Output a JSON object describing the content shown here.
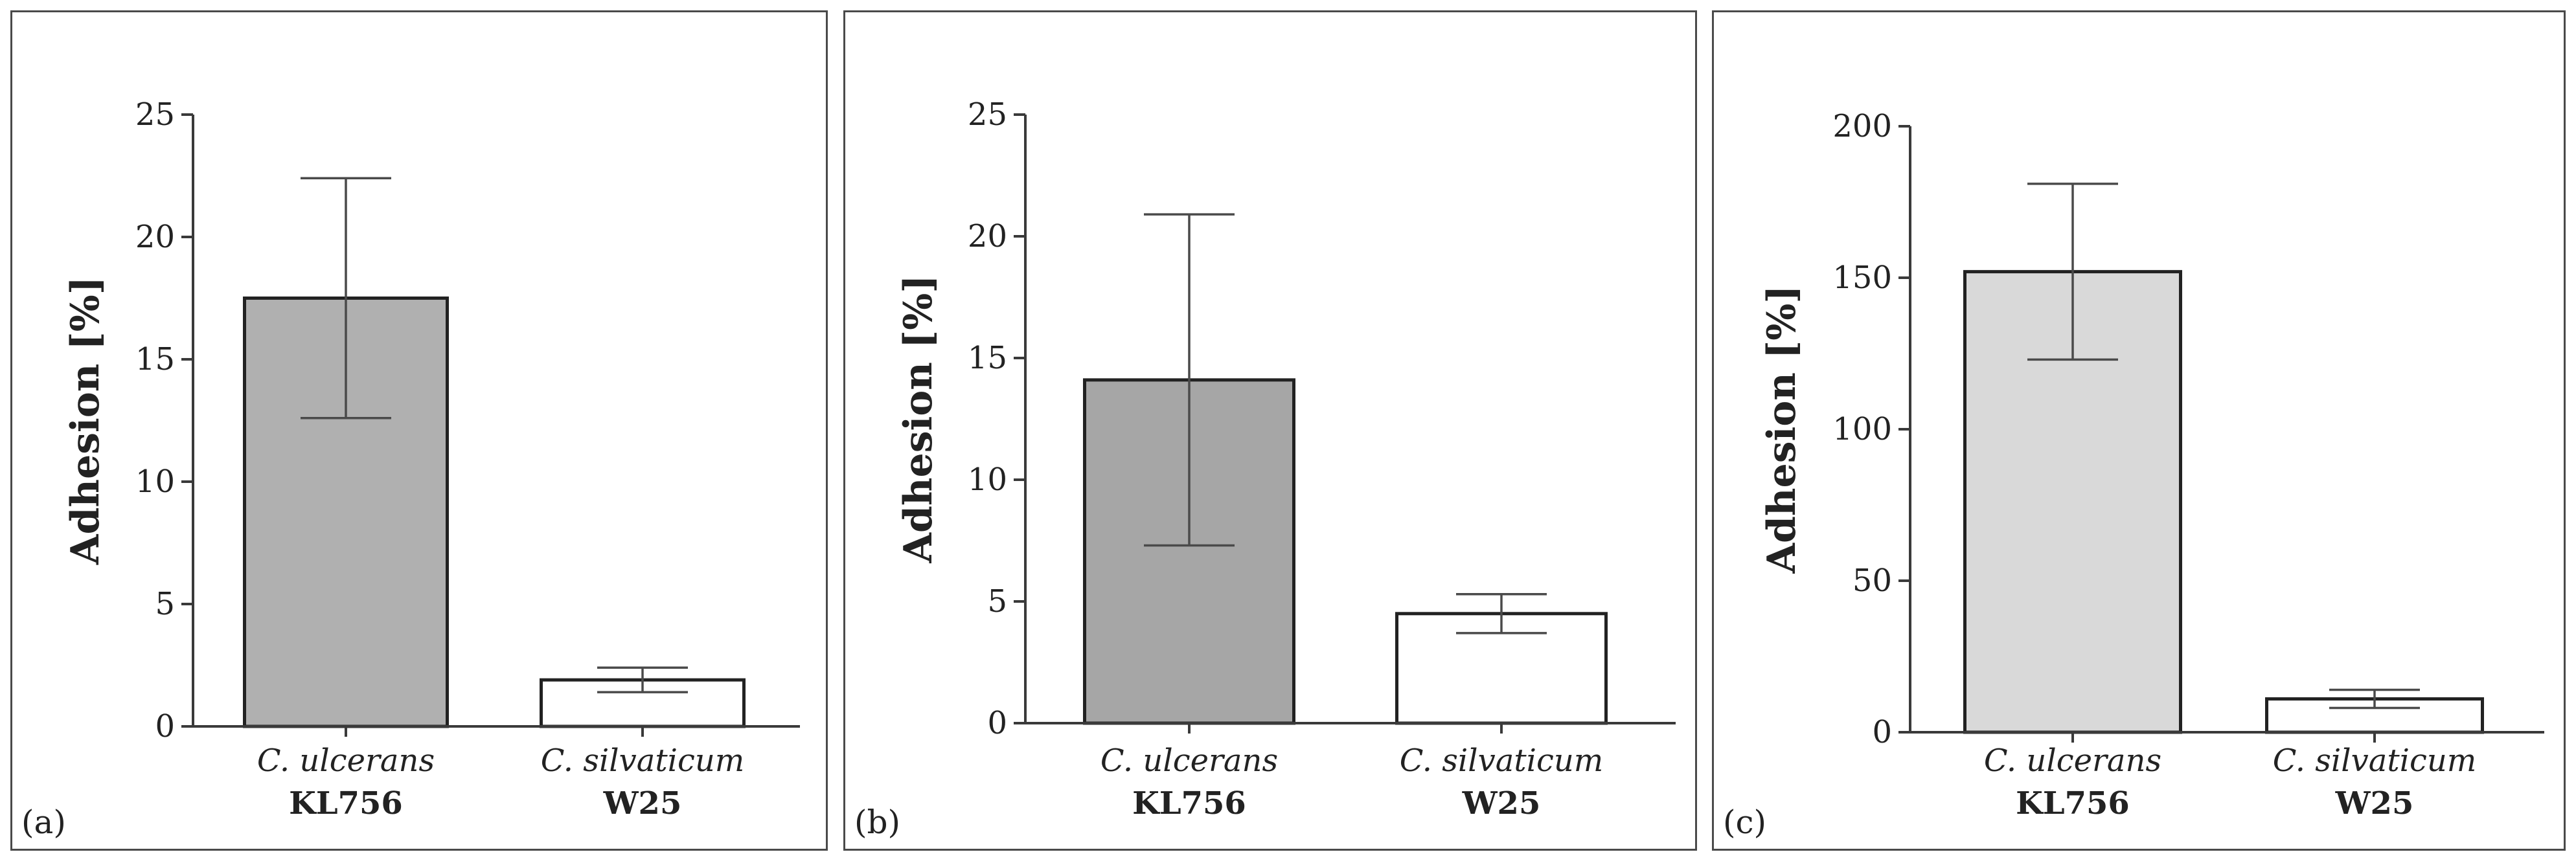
{
  "chart_data": [
    {
      "type": "bar",
      "panel_label": "(a)",
      "ylabel": "Adhesion [%]",
      "ylim": [
        0,
        25
      ],
      "yticks": [
        0,
        5,
        10,
        15,
        20,
        25
      ],
      "categories": [
        {
          "species": "C. ulcerans",
          "strain": "KL756"
        },
        {
          "species": "C. silvaticum",
          "strain": "W25"
        }
      ],
      "values": [
        17.5,
        1.9
      ],
      "errors": [
        4.9,
        0.5
      ],
      "bar_colors": [
        "#b0b0b0",
        "#ffffff"
      ]
    },
    {
      "type": "bar",
      "panel_label": "(b)",
      "ylabel": "Adhesion [%]",
      "ylim": [
        0,
        25
      ],
      "yticks": [
        0,
        5,
        10,
        15,
        20,
        25
      ],
      "categories": [
        {
          "species": "C. ulcerans",
          "strain": "KL756"
        },
        {
          "species": "C. silvaticum",
          "strain": "W25"
        }
      ],
      "values": [
        14.1,
        4.5
      ],
      "errors": [
        6.8,
        0.8
      ],
      "bar_colors": [
        "#a6a6a6",
        "#ffffff"
      ]
    },
    {
      "type": "bar",
      "panel_label": "(c)",
      "ylabel": "Adhesion [%]",
      "ylim": [
        0,
        200
      ],
      "yticks": [
        0,
        50,
        100,
        150,
        200
      ],
      "categories": [
        {
          "species": "C. ulcerans",
          "strain": "KL756"
        },
        {
          "species": "C. silvaticum",
          "strain": "W25"
        }
      ],
      "values": [
        152,
        11
      ],
      "errors": [
        29,
        3
      ],
      "bar_colors": [
        "#d9d9d9",
        "#ffffff"
      ]
    }
  ]
}
